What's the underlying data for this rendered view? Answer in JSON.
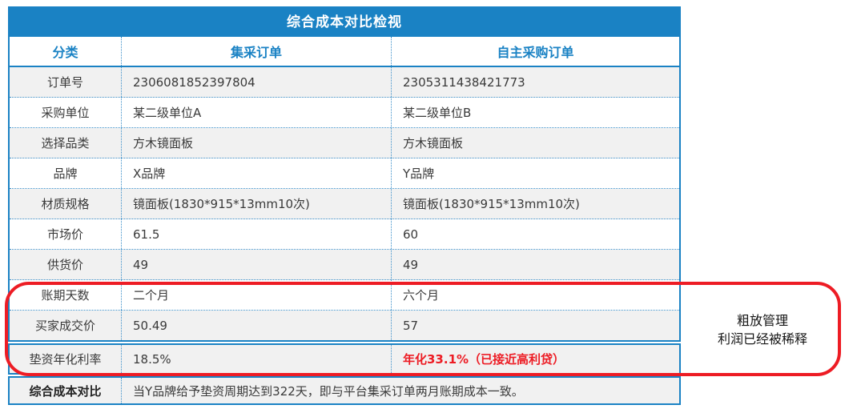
{
  "title": "综合成本对比检视",
  "colors": {
    "accent_blue": "#1A82C4",
    "alert_red": "#ED1C24",
    "shaded_row": "#F1F1F1"
  },
  "table": {
    "headers": [
      "分类",
      "集采订单",
      "自主采购订单"
    ],
    "rows": [
      {
        "label": "订单号",
        "group": "2306081852397804",
        "self": "2305311438421773"
      },
      {
        "label": "采购单位",
        "group": "某二级单位A",
        "self": "某二级单位B"
      },
      {
        "label": "选择品类",
        "group": "方木镜面板",
        "self": "方木镜面板"
      },
      {
        "label": "品牌",
        "group": "X品牌",
        "self": "Y品牌"
      },
      {
        "label": "材质规格",
        "group": "镜面板(1830*915*13mm10次)",
        "self": "镜面板(1830*915*13mm10次)"
      },
      {
        "label": "市场价",
        "group": "61.5",
        "self": "60"
      },
      {
        "label": "供货价",
        "group": "49",
        "self": "49"
      },
      {
        "label": "账期天数",
        "group": "二个月",
        "self": "六个月"
      },
      {
        "label": "买家成交价",
        "group": "50.49",
        "self": "57"
      }
    ],
    "rate_row": {
      "label": "垫资年化利率",
      "group": "18.5%",
      "self": "年化33.1%（已接近高利贷）"
    },
    "summary_row": {
      "label": "综合成本对比",
      "value": "当Y品牌给予垫资周期达到322天，即与平台集采订单两月账期成本一致。"
    }
  },
  "annotation": {
    "line1": "粗放管理",
    "line2": "利润已经被稀释"
  }
}
